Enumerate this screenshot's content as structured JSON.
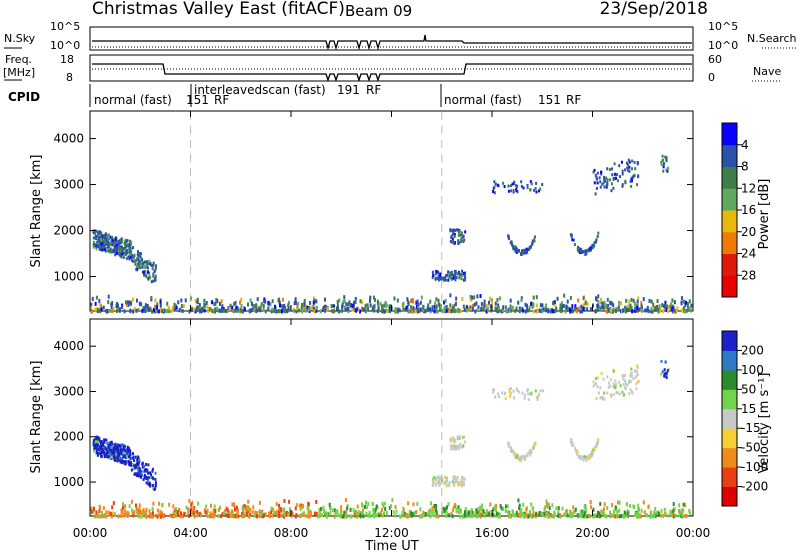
{
  "header": {
    "title": "Christmas Valley East (fitACF)",
    "beam": "Beam 09",
    "date": "23/Sep/2018"
  },
  "top_panels": {
    "nsky_label": "N.Sky",
    "nsearch_label": "N.Search",
    "noise_ticks": [
      "10^5",
      "10^0"
    ],
    "freq_label": "Freq.",
    "freq_unit": "[MHz]",
    "freq_ticks": [
      "18",
      "8"
    ],
    "nave_label": "Nave",
    "nave_ticks": [
      "60",
      "0"
    ],
    "cpid_label": "CPID",
    "cpid_segments": [
      {
        "name": "normal (fast)",
        "id": "151",
        "rf": "RF",
        "start": 0.0
      },
      {
        "name": "interleavedscan (fast)",
        "id": "191",
        "rf": "RF",
        "start": 4.0
      },
      {
        "name": "normal (fast)",
        "id": "151",
        "rf": "RF",
        "start": 14.0
      }
    ]
  },
  "chart_data": [
    {
      "type": "heatmap",
      "name": "power",
      "ylabel": "Slant Range [km]",
      "ylim": [
        250,
        4600
      ],
      "yticks": [
        1000,
        2000,
        3000,
        4000
      ],
      "xlim": [
        0,
        24
      ],
      "colorbar": {
        "label": "Power [dB]",
        "ticks": [
          "4",
          "8",
          "12",
          "16",
          "20",
          "24",
          "28"
        ],
        "colors": [
          "#0a00ff",
          "#2a52a8",
          "#3f7e4a",
          "#5fa85e",
          "#e9b80f",
          "#ef7a07",
          "#e01a0a",
          "#e80000"
        ]
      }
    },
    {
      "type": "heatmap",
      "name": "velocity",
      "ylabel": "Slant Range [km]",
      "ylim": [
        250,
        4600
      ],
      "yticks": [
        1000,
        2000,
        3000,
        4000
      ],
      "xlim": [
        0,
        24
      ],
      "colorbar": {
        "label": "Velocity [m s⁻¹]",
        "ticks": [
          "200",
          "100",
          "50",
          "15",
          "-15",
          "-50",
          "-100",
          "-200"
        ],
        "colors": [
          "#1a22c8",
          "#2e7bc9",
          "#2d8a2d",
          "#72d44a",
          "#c8c8c8",
          "#f5d034",
          "#f08a18",
          "#e84010",
          "#dd0000"
        ]
      }
    }
  ],
  "xaxis": {
    "label": "Time UT",
    "ticks": [
      "00:00",
      "04:00",
      "08:00",
      "12:00",
      "16:00",
      "20:00",
      "00:00"
    ]
  }
}
